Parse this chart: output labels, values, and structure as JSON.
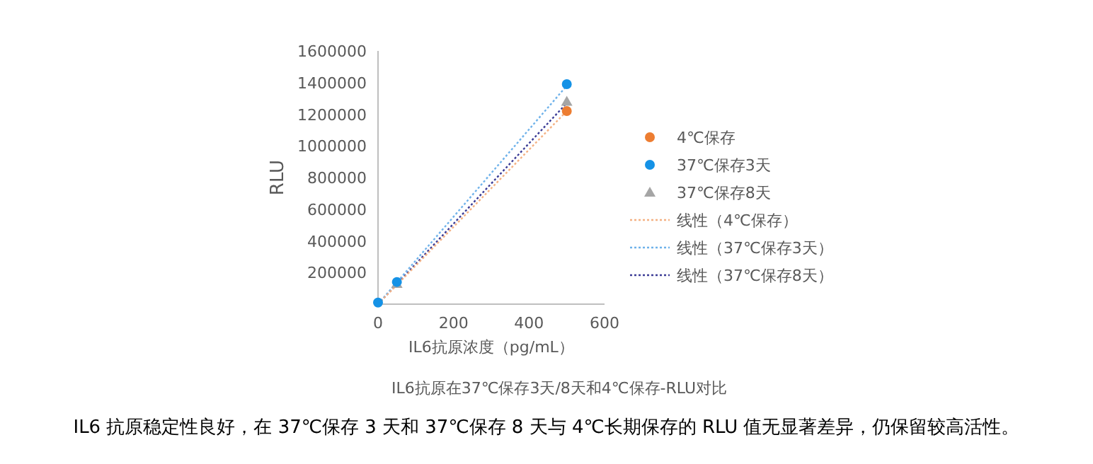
{
  "chart_data": {
    "type": "scatter",
    "xlabel": "IL6抗原浓度（pg/mL）",
    "ylabel": "RLU",
    "xlim": [
      0,
      600
    ],
    "xticks": [
      0,
      200,
      400,
      600
    ],
    "ylim": [
      0,
      1600000
    ],
    "yticks": [
      200000,
      400000,
      600000,
      800000,
      1000000,
      1200000,
      1400000,
      1600000
    ],
    "grid": false,
    "legend": "right",
    "series": [
      {
        "name": "4℃保存",
        "marker": "circle",
        "color": "#ed7d31",
        "x": [
          500
        ],
        "values": [
          1220000
        ]
      },
      {
        "name": "37℃保存3天",
        "marker": "circle",
        "color": "#1592e6",
        "x": [
          0,
          50,
          500
        ],
        "values": [
          10000,
          140000,
          1390000
        ]
      },
      {
        "name": "37℃保存8天",
        "marker": "triangle",
        "color": "#a5a5a5",
        "x": [
          50,
          500
        ],
        "values": [
          130000,
          1280000
        ]
      },
      {
        "name": "线性（4℃保存）",
        "type": "line",
        "line_style": "dotted",
        "color": "#f4b183",
        "x": [
          0,
          500
        ],
        "values": [
          0,
          1220000
        ]
      },
      {
        "name": "线性（37℃保存3天）",
        "type": "line",
        "line_style": "dotted",
        "color": "#6fb2ea",
        "x": [
          0,
          500
        ],
        "values": [
          0,
          1380000
        ]
      },
      {
        "name": "线性（37℃保存8天）",
        "type": "line",
        "line_style": "dotted",
        "color": "#3c3c96",
        "x": [
          0,
          500
        ],
        "values": [
          0,
          1270000
        ]
      }
    ],
    "annotations": [
      "IL6抗原在37℃保存3天/8天和4℃保存-RLU对比",
      "IL6 抗原稳定性良好，在 37℃保存 3 天和 37℃保存 8 天与 4℃长期保存的 RLU 值无显著差异，仍保留较高活性。"
    ]
  }
}
